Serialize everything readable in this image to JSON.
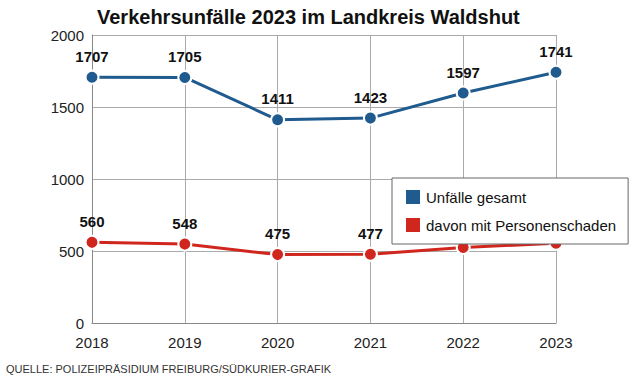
{
  "chart_data": {
    "type": "line",
    "title": "Verkehrsunfälle 2023 im Landkreis Waldshut",
    "source": "QUELLE: POLIZEIPRÄSIDIUM FREIBURG/SÜDKURIER-GRAFIK",
    "categories": [
      "2018",
      "2019",
      "2020",
      "2021",
      "2022",
      "2023"
    ],
    "series": [
      {
        "name": "Unfälle gesamt",
        "color": "#1f5b8e",
        "values": [
          1707,
          1705,
          1411,
          1423,
          1597,
          1741
        ]
      },
      {
        "name": "davon mit Personenschaden",
        "color": "#d0261d",
        "values": [
          560,
          548,
          475,
          477,
          525,
          554
        ]
      }
    ],
    "ylim": [
      0,
      2000
    ],
    "yticks": [
      0,
      500,
      1000,
      1500,
      2000
    ],
    "grid": true,
    "data_labels": true,
    "legend": "right",
    "marker": "circle"
  }
}
